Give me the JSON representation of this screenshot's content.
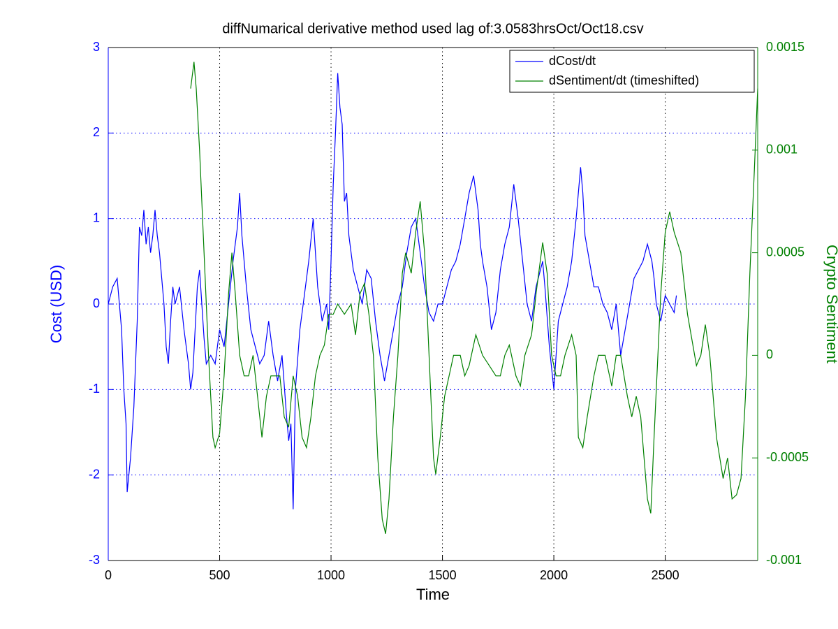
{
  "chart_data": {
    "type": "line",
    "title": "diffNumarical derivative method used lag of:3.0583hrsOct/Oct18.csv",
    "xlabel": "Time",
    "ylabel": "Cost (USD)",
    "y2label": "Crypto Sentiment",
    "xlim": [
      0,
      2915
    ],
    "xticks": [
      0,
      500,
      1000,
      1500,
      2000,
      2500
    ],
    "ylim": [
      -3,
      3
    ],
    "yticks": [
      -3,
      -2,
      -1,
      0,
      1,
      2,
      3
    ],
    "y2lim": [
      -0.001,
      0.0015
    ],
    "y2ticks": [
      -0.001,
      -0.0005,
      0,
      0.0005,
      0.001,
      0.0015
    ],
    "grid": true,
    "legend": "northeast",
    "ycolor": "#0000ff",
    "y2color": "#008000",
    "series": [
      {
        "name": "dCost/dt",
        "color": "#0000ff",
        "axis": "y",
        "x": [
          0,
          20,
          40,
          60,
          70,
          80,
          85,
          100,
          115,
          130,
          140,
          150,
          160,
          170,
          180,
          190,
          200,
          210,
          220,
          230,
          240,
          250,
          260,
          270,
          280,
          290,
          300,
          320,
          340,
          360,
          370,
          380,
          390,
          400,
          410,
          420,
          430,
          440,
          460,
          480,
          500,
          520,
          540,
          560,
          580,
          590,
          600,
          620,
          640,
          660,
          680,
          700,
          720,
          740,
          760,
          780,
          800,
          810,
          820,
          830,
          840,
          860,
          880,
          900,
          920,
          930,
          940,
          960,
          980,
          990,
          1000,
          1010,
          1020,
          1030,
          1040,
          1050,
          1060,
          1070,
          1080,
          1100,
          1120,
          1140,
          1160,
          1180,
          1200,
          1220,
          1240,
          1260,
          1280,
          1300,
          1320,
          1340,
          1360,
          1380,
          1400,
          1420,
          1440,
          1460,
          1480,
          1500,
          1520,
          1540,
          1560,
          1580,
          1600,
          1620,
          1640,
          1660,
          1670,
          1680,
          1700,
          1720,
          1740,
          1760,
          1780,
          1800,
          1820,
          1840,
          1860,
          1880,
          1900,
          1920,
          1940,
          1950,
          1960,
          1980,
          2000,
          2010,
          2020,
          2040,
          2060,
          2080,
          2100,
          2120,
          2130,
          2140,
          2160,
          2180,
          2200,
          2220,
          2240,
          2260,
          2280,
          2300,
          2320,
          2340,
          2360,
          2380,
          2400,
          2420,
          2440,
          2450,
          2460,
          2480,
          2500,
          2520,
          2540,
          2550
        ],
        "values": [
          0,
          0.2,
          0.3,
          -0.3,
          -1,
          -1.4,
          -2.2,
          -1.8,
          -1.2,
          -0.2,
          0.9,
          0.8,
          1.1,
          0.7,
          0.9,
          0.6,
          0.8,
          1.1,
          0.8,
          0.6,
          0.3,
          0,
          -0.5,
          -0.7,
          -0.2,
          0.2,
          0,
          0.2,
          -0.3,
          -0.7,
          -1,
          -0.8,
          -0.3,
          0.2,
          0.4,
          0,
          -0.4,
          -0.7,
          -0.6,
          -0.7,
          -0.3,
          -0.5,
          0,
          0.5,
          0.9,
          1.3,
          0.8,
          0.2,
          -0.3,
          -0.5,
          -0.7,
          -0.6,
          -0.2,
          -0.6,
          -0.9,
          -0.6,
          -1.3,
          -1.6,
          -1.4,
          -2.4,
          -1,
          -0.3,
          0.1,
          0.5,
          1,
          0.6,
          0.2,
          -0.2,
          0,
          -0.3,
          0.5,
          1.4,
          2,
          2.7,
          2.3,
          2.1,
          1.2,
          1.3,
          0.8,
          0.4,
          0.2,
          0,
          0.4,
          0.3,
          -0.2,
          -0.6,
          -0.9,
          -0.6,
          -0.3,
          0,
          0.2,
          0.6,
          0.9,
          1,
          0.6,
          0.2,
          -0.1,
          -0.2,
          0,
          0,
          0.2,
          0.4,
          0.5,
          0.7,
          1,
          1.3,
          1.5,
          1.1,
          0.7,
          0.5,
          0.2,
          -0.3,
          -0.1,
          0.4,
          0.7,
          0.9,
          1.4,
          1,
          0.5,
          0,
          -0.2,
          0.2,
          0.4,
          0.5,
          0.2,
          -0.5,
          -1,
          -0.6,
          -0.2,
          0,
          0.2,
          0.5,
          1,
          1.6,
          1.3,
          0.8,
          0.5,
          0.2,
          0.2,
          0,
          -0.1,
          -0.3,
          0,
          -0.6,
          -0.3,
          0,
          0.3,
          0.4,
          0.5,
          0.7,
          0.5,
          0.3,
          0,
          -0.2,
          0.1,
          0,
          -0.1,
          0.1
        ]
      },
      {
        "name": "dSentiment/dt (timeshifted)",
        "color": "#008000",
        "axis": "y2",
        "x": [
          370,
          385,
          395,
          410,
          430,
          450,
          470,
          480,
          500,
          520,
          540,
          555,
          570,
          590,
          610,
          630,
          650,
          670,
          690,
          710,
          730,
          750,
          770,
          790,
          810,
          830,
          850,
          870,
          890,
          910,
          930,
          950,
          970,
          990,
          1010,
          1030,
          1060,
          1090,
          1110,
          1130,
          1150,
          1170,
          1190,
          1210,
          1230,
          1245,
          1260,
          1280,
          1300,
          1320,
          1335,
          1360,
          1380,
          1400,
          1420,
          1440,
          1460,
          1470,
          1490,
          1510,
          1530,
          1550,
          1580,
          1600,
          1620,
          1650,
          1680,
          1710,
          1740,
          1760,
          1780,
          1800,
          1830,
          1850,
          1870,
          1900,
          1920,
          1950,
          1970,
          1990,
          2010,
          2030,
          2050,
          2080,
          2100,
          2110,
          2130,
          2150,
          2180,
          2200,
          2230,
          2260,
          2280,
          2300,
          2330,
          2350,
          2370,
          2390,
          2420,
          2435,
          2450,
          2480,
          2500,
          2520,
          2540,
          2570,
          2600,
          2640,
          2660,
          2680,
          2700,
          2730,
          2760,
          2780,
          2800,
          2820,
          2840,
          2860,
          2880,
          2900,
          2915
        ],
        "values": [
          0.0013,
          0.00143,
          0.0013,
          0.001,
          0.0005,
          0,
          -0.0004,
          -0.00045,
          -0.00038,
          -0.0001,
          0.0003,
          0.0005,
          0.0003,
          0,
          -0.0001,
          -0.0001,
          0,
          -0.0002,
          -0.0004,
          -0.0002,
          -0.0001,
          -0.0001,
          -0.0001,
          -0.0003,
          -0.00035,
          -0.0001,
          -0.0002,
          -0.0004,
          -0.00045,
          -0.0003,
          -0.0001,
          0,
          5e-05,
          0.0002,
          0.0002,
          0.00025,
          0.0002,
          0.00025,
          0.0001,
          0.0003,
          0.00035,
          0.0002,
          0,
          -0.0005,
          -0.0008,
          -0.00087,
          -0.0007,
          -0.0003,
          0,
          0.0004,
          0.0005,
          0.0004,
          0.0006,
          0.00075,
          0.0005,
          0,
          -0.0005,
          -0.00058,
          -0.0004,
          -0.0002,
          -0.0001,
          0,
          0,
          -0.0001,
          -5e-05,
          0.0001,
          0,
          -5e-05,
          -0.0001,
          -0.0001,
          0,
          5e-05,
          -0.0001,
          -0.00015,
          0,
          0.0001,
          0.0003,
          0.00055,
          0.0004,
          0,
          -0.0001,
          -0.0001,
          0,
          0.0001,
          0,
          -0.0004,
          -0.00045,
          -0.0003,
          -0.0001,
          0,
          0,
          -0.00015,
          0,
          0,
          -0.0002,
          -0.0003,
          -0.0002,
          -0.0003,
          -0.0007,
          -0.00077,
          -0.0004,
          0.0003,
          0.0006,
          0.0007,
          0.0006,
          0.0005,
          0.0002,
          -5e-05,
          0,
          0.00015,
          0,
          -0.0004,
          -0.0006,
          -0.0005,
          -0.0007,
          -0.00068,
          -0.0006,
          -0.0002,
          0.0004,
          0.0009,
          0.0013
        ]
      }
    ]
  }
}
